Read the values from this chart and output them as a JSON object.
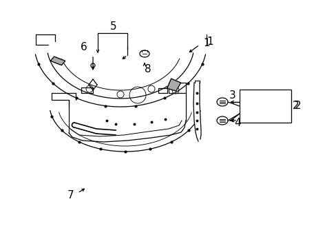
{
  "background_color": "#ffffff",
  "line_color": "#000000",
  "fig_width": 4.89,
  "fig_height": 3.6,
  "dpi": 100,
  "font_size": 9,
  "font_size_large": 11
}
